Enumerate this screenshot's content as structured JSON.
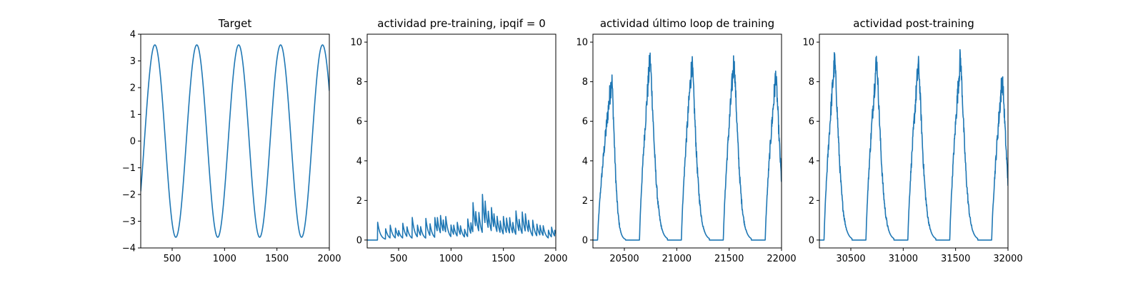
{
  "chart_data": [
    {
      "type": "line",
      "title": "Target",
      "xlabel": "",
      "ylabel": "",
      "xlim": [
        200,
        2000
      ],
      "ylim": [
        -4,
        4
      ],
      "xticks": [
        500,
        1000,
        1500,
        2000
      ],
      "yticks": [
        -4,
        -3,
        -2,
        -1,
        0,
        1,
        2,
        3,
        4
      ],
      "grid": false,
      "signal": {
        "kind": "sine",
        "amplitude": 3.6,
        "period": 400,
        "peaks": [
          335,
          735,
          1135,
          1535,
          1935
        ],
        "x_start": 200,
        "x_end": 2000
      }
    },
    {
      "type": "line",
      "title": "actividad pre-training, ipqif = 0",
      "xlabel": "",
      "ylabel": "",
      "xlim": [
        200,
        2000
      ],
      "ylim": [
        -0.4,
        10.4
      ],
      "xticks": [
        500,
        1000,
        1500,
        2000
      ],
      "yticks": [
        0,
        2,
        4,
        6,
        8,
        10
      ],
      "grid": false,
      "signal": {
        "kind": "spikes",
        "x_start": 200,
        "x_end": 2000,
        "decay": 25,
        "spikes": [
          [
            300,
            0.9
          ],
          [
            375,
            0.55
          ],
          [
            420,
            0.65
          ],
          [
            470,
            0.5
          ],
          [
            500,
            0.3
          ],
          [
            540,
            0.75
          ],
          [
            580,
            0.5
          ],
          [
            630,
            1.05
          ],
          [
            680,
            0.6
          ],
          [
            710,
            0.45
          ],
          [
            760,
            1.0
          ],
          [
            800,
            0.6
          ],
          [
            845,
            1.05
          ],
          [
            870,
            0.7
          ],
          [
            900,
            0.9
          ],
          [
            925,
            0.6
          ],
          [
            950,
            0.8
          ],
          [
            1000,
            0.6
          ],
          [
            1025,
            0.5
          ],
          [
            1060,
            0.7
          ],
          [
            1090,
            0.45
          ],
          [
            1130,
            0.4
          ],
          [
            1160,
            0.9
          ],
          [
            1190,
            0.55
          ],
          [
            1210,
            1.5
          ],
          [
            1235,
            0.8
          ],
          [
            1265,
            1.0
          ],
          [
            1300,
            1.95
          ],
          [
            1325,
            1.2
          ],
          [
            1355,
            0.9
          ],
          [
            1385,
            1.25
          ],
          [
            1410,
            0.7
          ],
          [
            1440,
            0.8
          ],
          [
            1470,
            0.6
          ],
          [
            1500,
            0.9
          ],
          [
            1530,
            0.75
          ],
          [
            1560,
            0.8
          ],
          [
            1590,
            0.55
          ],
          [
            1620,
            1.2
          ],
          [
            1650,
            0.6
          ],
          [
            1680,
            1.1
          ],
          [
            1710,
            0.9
          ],
          [
            1740,
            0.6
          ],
          [
            1780,
            0.8
          ],
          [
            1820,
            0.6
          ],
          [
            1850,
            0.5
          ],
          [
            1880,
            0.5
          ],
          [
            1930,
            0.4
          ],
          [
            1960,
            0.5
          ],
          [
            1990,
            0.3
          ]
        ]
      }
    },
    {
      "type": "line",
      "title": "actividad último loop de training",
      "xlabel": "",
      "ylabel": "",
      "xlim": [
        20200,
        22000
      ],
      "ylim": [
        -0.4,
        10.4
      ],
      "xticks": [
        20500,
        21000,
        21500,
        22000
      ],
      "yticks": [
        0,
        2,
        4,
        6,
        8,
        10
      ],
      "grid": false,
      "signal": {
        "kind": "bursts",
        "x_start": 20200,
        "x_end": 22000,
        "bursts": [
          {
            "start": 20245,
            "peak_x": 20380,
            "peak": 8.2,
            "end": 20470
          },
          {
            "start": 20645,
            "peak_x": 20745,
            "peak": 9.2,
            "end": 20870
          },
          {
            "start": 21045,
            "peak_x": 21145,
            "peak": 9.0,
            "end": 21270
          },
          {
            "start": 21445,
            "peak_x": 21545,
            "peak": 9.05,
            "end": 21670
          },
          {
            "start": 21845,
            "peak_x": 21945,
            "peak": 8.3,
            "end": 22070
          }
        ]
      }
    },
    {
      "type": "line",
      "title": "actividad post-training",
      "xlabel": "",
      "ylabel": "",
      "xlim": [
        30200,
        32000
      ],
      "ylim": [
        -0.4,
        10.4
      ],
      "xticks": [
        30500,
        31000,
        31500,
        32000
      ],
      "yticks": [
        0,
        2,
        4,
        6,
        8,
        10
      ],
      "grid": false,
      "signal": {
        "kind": "bursts",
        "x_start": 30200,
        "x_end": 32000,
        "bursts": [
          {
            "start": 30245,
            "peak_x": 30345,
            "peak": 9.1,
            "end": 30470
          },
          {
            "start": 30645,
            "peak_x": 30745,
            "peak": 9.1,
            "end": 30870
          },
          {
            "start": 31045,
            "peak_x": 31145,
            "peak": 8.9,
            "end": 31270
          },
          {
            "start": 31445,
            "peak_x": 31545,
            "peak": 9.2,
            "end": 31670
          },
          {
            "start": 31845,
            "peak_x": 31945,
            "peak": 8.2,
            "end": 32070
          }
        ]
      }
    }
  ],
  "colors": {
    "series": "#1f77b4",
    "axes": "#000000",
    "background": "#ffffff"
  }
}
